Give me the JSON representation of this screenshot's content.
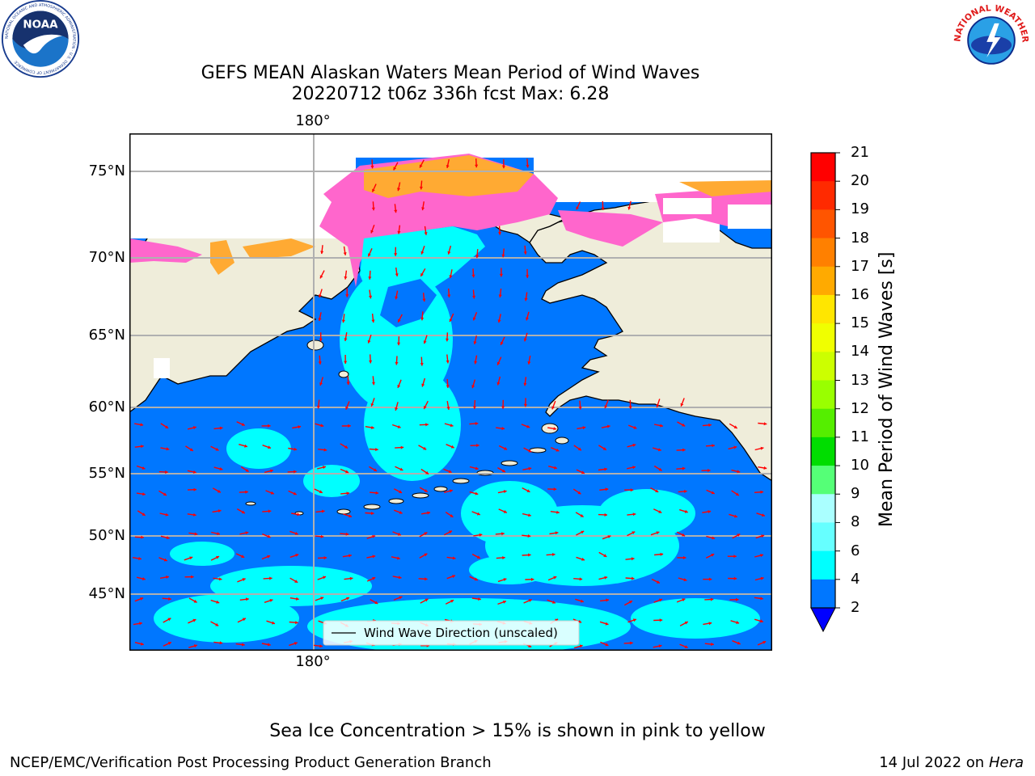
{
  "header": {
    "title_line1": "GEFS MEAN Alaskan Waters Mean Period of Wind Waves",
    "title_line2": "20220712 t06z 336h fcst   Max: 6.28"
  },
  "logos": {
    "left_text": "NOAA",
    "left_ring": "NATIONAL OCEANIC AND ATMOSPHERIC ADMINISTRATION · U.S. DEPARTMENT OF COMMERCE",
    "right_ring": "NATIONAL WEATHER SERVICE"
  },
  "map": {
    "lat_labels": [
      "75°N",
      "70°N",
      "65°N",
      "60°N",
      "55°N",
      "50°N",
      "45°N"
    ],
    "lon_label_top": "180°",
    "lon_label_bottom": "180°",
    "legend_label": "Wind Wave Direction (unscaled)",
    "colors": {
      "land": "#efedda",
      "ocean_low": "#0077ff",
      "ocean_mid": "#00ffff",
      "ice_pink": "#ff66cc",
      "ice_orange": "#ffaa33",
      "arrow": "#ff0000",
      "grid": "#b0b0b0"
    }
  },
  "colorbar": {
    "label": "Mean Period of Wind Waves [s]",
    "ticks": [
      "21",
      "20",
      "19",
      "18",
      "17",
      "16",
      "15",
      "14",
      "13",
      "12",
      "11",
      "10",
      "9",
      "8",
      "6",
      "4",
      "2"
    ],
    "colors": [
      "#ff0000",
      "#ff2a00",
      "#ff5500",
      "#ff8000",
      "#ffaa00",
      "#ffe600",
      "#f0ff00",
      "#ccff00",
      "#99ff00",
      "#55ee00",
      "#00dd00",
      "#55ff77",
      "#aaffff",
      "#66ffff",
      "#00ffff",
      "#0077ff"
    ],
    "under_color": "#0000ff"
  },
  "footer": {
    "note": "Sea Ice Concentration > 15% is shown in pink to yellow",
    "org": "NCEP/EMC/Verification Post Processing Product Generation Branch",
    "date_prefix": "14 Jul 2022 on ",
    "date_machine": "Hera"
  }
}
